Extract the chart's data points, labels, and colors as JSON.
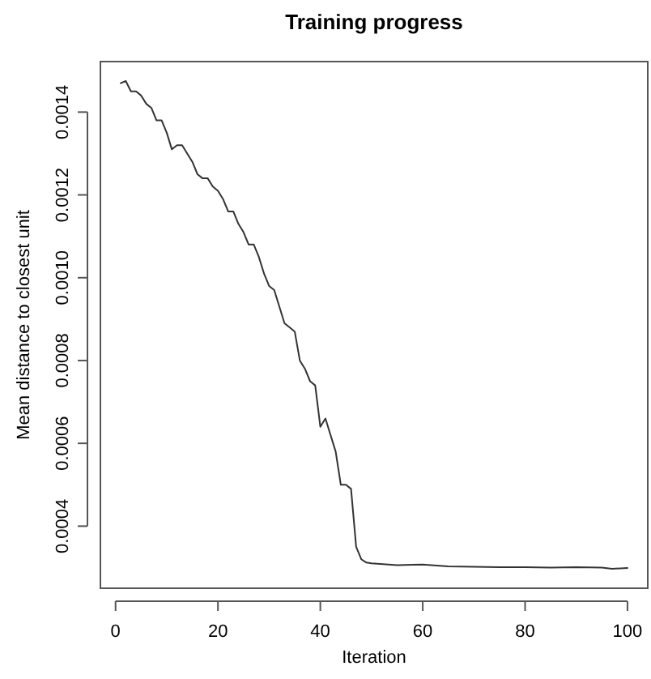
{
  "chart_data": {
    "type": "line",
    "title": "Training progress",
    "xlabel": "Iteration",
    "ylabel": "Mean distance to closest unit",
    "x": [
      1,
      2,
      3,
      4,
      5,
      6,
      7,
      8,
      9,
      10,
      11,
      12,
      13,
      14,
      15,
      16,
      17,
      18,
      19,
      20,
      21,
      22,
      23,
      24,
      25,
      26,
      27,
      28,
      29,
      30,
      31,
      32,
      33,
      34,
      35,
      36,
      37,
      38,
      39,
      40,
      41,
      42,
      43,
      44,
      45,
      46,
      47,
      48,
      49,
      50,
      55,
      60,
      65,
      70,
      75,
      80,
      85,
      90,
      95,
      97,
      100
    ],
    "series": [
      {
        "color": "#333333",
        "values": [
          0.00147,
          0.001475,
          0.00145,
          0.00145,
          0.00144,
          0.00142,
          0.00141,
          0.00138,
          0.00138,
          0.00135,
          0.00131,
          0.00132,
          0.00132,
          0.0013,
          0.00128,
          0.00125,
          0.00124,
          0.00124,
          0.00122,
          0.00121,
          0.00119,
          0.00116,
          0.00116,
          0.00113,
          0.00111,
          0.00108,
          0.00108,
          0.00105,
          0.00101,
          0.00098,
          0.00097,
          0.00093,
          0.00089,
          0.00088,
          0.00087,
          0.0008,
          0.00078,
          0.00075,
          0.00074,
          0.00064,
          0.00066,
          0.00062,
          0.00058,
          0.0005,
          0.0005,
          0.00049,
          0.00035,
          0.00032,
          0.000312,
          0.00031,
          0.000306,
          0.000307,
          0.000303,
          0.000302,
          0.000301,
          0.000301,
          0.0003,
          0.000301,
          0.0003,
          0.000297,
          0.000299
        ]
      }
    ],
    "xlim": [
      -2.96,
      103.96
    ],
    "ylim": [
      0.00025,
      0.001522
    ],
    "xticks": [
      0,
      20,
      40,
      60,
      80,
      100
    ],
    "yticks": [
      0.0004,
      0.0006,
      0.0008,
      {
        "value": 0.001,
        "label": "0.0010"
      },
      0.0012,
      0.0014
    ],
    "grid": false,
    "marker": "none",
    "line_style": "solid"
  }
}
